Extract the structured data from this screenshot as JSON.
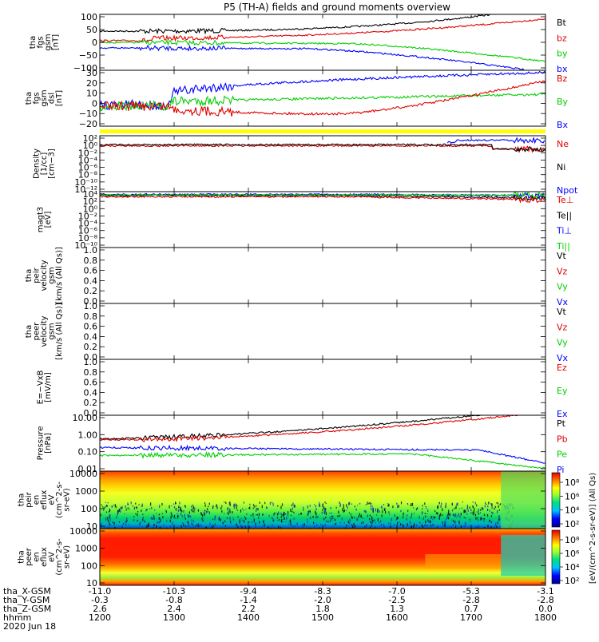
{
  "title": "P5 (TH-A) fields and ground moments overview",
  "colors": {
    "black": "#000000",
    "red": "#e00000",
    "green": "#00d000",
    "blue": "#0000ff",
    "yellow": "#ffff00"
  },
  "chart_data": [
    {
      "type": "line",
      "id": "fgs_gsm",
      "ylabel": [
        "tha",
        "fgs",
        "gsm",
        "[nT]"
      ],
      "ylim": [
        -100,
        100
      ],
      "yticks": [
        "100",
        "50",
        "0",
        "−50",
        "−100"
      ],
      "series": [
        {
          "name": "Bt",
          "color": "black"
        },
        {
          "name": "bz",
          "color": "red"
        },
        {
          "name": "by",
          "color": "green"
        },
        {
          "name": "bx",
          "color": "blue"
        }
      ]
    },
    {
      "type": "line",
      "id": "fgs_dsl",
      "ylabel": [
        "tha",
        "fgs",
        "gsm",
        "dsl",
        "[nT]"
      ],
      "ylim": [
        -25,
        30
      ],
      "yticks": [
        "30",
        "20",
        "10",
        "0",
        "−10",
        "−20"
      ],
      "series": [
        {
          "name": "Bz",
          "color": "red"
        },
        {
          "name": "By",
          "color": "green"
        },
        {
          "name": "Bx",
          "color": "blue"
        }
      ]
    },
    {
      "type": "bar",
      "id": "flag",
      "note": "yellow status bar"
    },
    {
      "type": "line",
      "id": "density",
      "ylabel": [
        "Density",
        "[1/cc]",
        "[cm−3]"
      ],
      "scale": "log",
      "yticks": [
        "10²",
        "10⁰",
        "10⁻²",
        "10⁻⁴",
        "10⁻⁶",
        "10⁻⁸",
        "10⁻¹⁰",
        "10⁻¹²"
      ],
      "series": [
        {
          "name": "Ne",
          "color": "red"
        },
        {
          "name": "Ni",
          "color": "black"
        },
        {
          "name": "Npot",
          "color": "blue"
        }
      ]
    },
    {
      "type": "line",
      "id": "temperature",
      "ylabel": [
        "magt3",
        "[eV]"
      ],
      "scale": "log",
      "yticks": [
        "10⁴",
        "10²",
        "10⁰",
        "10⁻²",
        "10⁻⁴",
        "10⁻⁶",
        "10⁻⁸",
        "10⁻¹⁰"
      ],
      "series": [
        {
          "name": "Te⊥",
          "color": "red"
        },
        {
          "name": "Te||",
          "color": "black"
        },
        {
          "name": "Ti⊥",
          "color": "blue"
        },
        {
          "name": "Ti||",
          "color": "green"
        }
      ]
    },
    {
      "type": "line",
      "id": "peir_v",
      "ylabel": [
        "tha",
        "peir",
        "velocity",
        "gsm",
        "[km/s (All Qs)]"
      ],
      "ylim": [
        0,
        1
      ],
      "yticks": [
        "1.0",
        "0.8",
        "0.6",
        "0.4",
        "0.2",
        "0.0"
      ],
      "series": [
        {
          "name": "Vt",
          "color": "black"
        },
        {
          "name": "Vz",
          "color": "red"
        },
        {
          "name": "Vy",
          "color": "green"
        },
        {
          "name": "Vx",
          "color": "blue"
        }
      ]
    },
    {
      "type": "line",
      "id": "peer_v",
      "ylabel": [
        "tha",
        "peer",
        "velocity",
        "gsm",
        "[km/s (All Qs)]"
      ],
      "ylim": [
        0,
        1
      ],
      "yticks": [
        "1.0",
        "0.8",
        "0.6",
        "0.4",
        "0.2",
        "0.0"
      ],
      "series": [
        {
          "name": "Vt",
          "color": "black"
        },
        {
          "name": "Vz",
          "color": "red"
        },
        {
          "name": "Vy",
          "color": "green"
        },
        {
          "name": "Vx",
          "color": "blue"
        }
      ]
    },
    {
      "type": "line",
      "id": "efield",
      "ylabel": [
        "E=−VxB",
        "[mV/m]"
      ],
      "ylim": [
        0,
        1
      ],
      "yticks": [
        "1.0",
        "0.8",
        "0.6",
        "0.4",
        "0.2",
        "0.0"
      ],
      "series": [
        {
          "name": "Ez",
          "color": "red"
        },
        {
          "name": "Ey",
          "color": "green"
        },
        {
          "name": "Ex",
          "color": "blue"
        }
      ]
    },
    {
      "type": "line",
      "id": "pressure",
      "ylabel": [
        "Pressure",
        "[nPa]"
      ],
      "scale": "log",
      "yticks": [
        "10.00",
        "1.00",
        "0.10",
        "0.01"
      ],
      "series": [
        {
          "name": "Pt",
          "color": "black"
        },
        {
          "name": "Pb",
          "color": "red"
        },
        {
          "name": "Pe",
          "color": "green"
        },
        {
          "name": "Pi",
          "color": "blue"
        }
      ]
    },
    {
      "type": "heatmap",
      "id": "peir_en",
      "ylabel": [
        "tha",
        "peir",
        "en",
        "eflux",
        "eV",
        "(cm^2-s-",
        "sr-eV)"
      ],
      "scale": "log",
      "yticks": [
        "10000",
        "1000",
        "100",
        "10"
      ],
      "colorbar_ticks": [
        "10⁸",
        "10⁶",
        "10⁴",
        "10²"
      ]
    },
    {
      "type": "heatmap",
      "id": "peer_en",
      "ylabel": [
        "tha",
        "peer",
        "en",
        "eflux",
        "eV",
        "(cm^2-s-",
        "sr-eV)"
      ],
      "scale": "log",
      "yticks": [
        "10000",
        "1000",
        "100",
        "10"
      ],
      "colorbar_ticks": [
        "10⁸",
        "10⁶",
        "10⁴",
        "10²"
      ]
    }
  ],
  "colorbar_label": "[eV/(cm^2-s-sr-eV)] (All Qs)",
  "xaxis": {
    "row_labels": [
      "tha_X-GSM",
      "tha_Y-GSM",
      "tha_Z-GSM",
      "hhmm",
      "2020 Jun 18"
    ],
    "ticks": [
      {
        "x": "-11.0",
        "y": "-0.3",
        "z": "2.6",
        "t": "1200"
      },
      {
        "x": "-10.3",
        "y": "-0.8",
        "z": "2.4",
        "t": "1300"
      },
      {
        "x": "-9.4",
        "y": "-1.4",
        "z": "2.2",
        "t": "1400"
      },
      {
        "x": "-8.3",
        "y": "-2.0",
        "z": "1.8",
        "t": "1500"
      },
      {
        "x": "-7.0",
        "y": "-2.5",
        "z": "1.3",
        "t": "1600"
      },
      {
        "x": "-5.3",
        "y": "-2.8",
        "z": "0.7",
        "t": "1700"
      },
      {
        "x": "-3.1",
        "y": "-2.8",
        "z": "0.0",
        "t": "1800"
      }
    ]
  }
}
